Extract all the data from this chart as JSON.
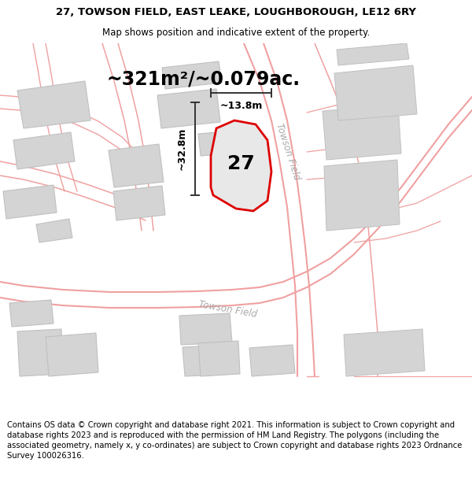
{
  "title_line1": "27, TOWSON FIELD, EAST LEAKE, LOUGHBOROUGH, LE12 6RY",
  "title_line2": "Map shows position and indicative extent of the property.",
  "area_text": "~321m²/~0.079ac.",
  "dim_width": "~13.8m",
  "dim_height": "~32.8m",
  "number_label": "27",
  "road_label_v": "Towson Field",
  "road_label_h": "Towson Field",
  "footer_text": "Contains OS data © Crown copyright and database right 2021. This information is subject to Crown copyright and database rights 2023 and is reproduced with the permission of HM Land Registry. The polygons (including the associated geometry, namely x, y co-ordinates) are subject to Crown copyright and database rights 2023 Ordnance Survey 100026316.",
  "background_color": "#ffffff",
  "map_bg_color": "#f7f7f7",
  "property_fill": "#e8e8e8",
  "property_outline": "#dd0000",
  "building_fill": "#d4d4d4",
  "building_edge": "#c0c0c0",
  "road_color": "#f0a0a0",
  "road_label_color": "#aaaaaa",
  "dim_color": "#333333",
  "title_fontsize": 9.5,
  "subtitle_fontsize": 8.5,
  "area_fontsize": 17,
  "dim_fontsize": 9,
  "number_fontsize": 18,
  "footer_fontsize": 7.2
}
